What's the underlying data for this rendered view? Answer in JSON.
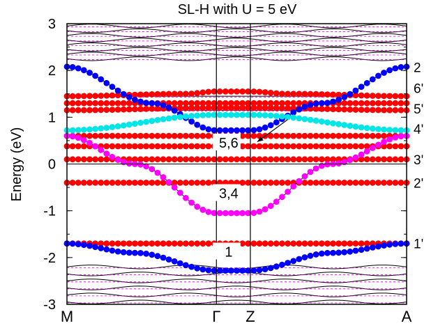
{
  "chart_data": {
    "type": "scatter",
    "title": "SL-H with U = 5 eV",
    "ylabel": "Energy (eV)",
    "xlabel": "",
    "ylim": [
      -3,
      3
    ],
    "yticks": [
      3,
      2,
      1,
      0,
      -1,
      -2,
      -3
    ],
    "ytick_labels": [
      "3",
      "2",
      "1",
      "0",
      "-1",
      "-2",
      "-3"
    ],
    "x_points": {
      "M": 0.0,
      "Gamma": 0.44,
      "Z": 0.54,
      "A": 1.0
    },
    "x_tick_labels": [
      "M",
      "Γ",
      "Z",
      "A"
    ],
    "grid": false,
    "colors": {
      "bands": "#000000",
      "dashed": "#cc00cc",
      "red": "#ff0000",
      "cyan": "#00e5e5",
      "magenta": "#ff00ff",
      "blue": "#0000ff"
    },
    "right_labels": [
      {
        "label": "2",
        "y": 2.07
      },
      {
        "label": "6'",
        "y": 1.62
      },
      {
        "label": "5'",
        "y": 1.18
      },
      {
        "label": "4'",
        "y": 0.75
      },
      {
        "label": "3'",
        "y": 0.1
      },
      {
        "label": "2'",
        "y": -0.4
      },
      {
        "label": "1'",
        "y": -1.7
      }
    ],
    "annotations": [
      {
        "text": "5,6",
        "x": 0.47,
        "y": 0.38
      },
      {
        "text": "3,4",
        "x": 0.47,
        "y": -0.7
      },
      {
        "text": "1",
        "x": 0.47,
        "y": -1.95
      }
    ],
    "arrow": {
      "from": [
        0.65,
        0.95
      ],
      "to": [
        0.54,
        0.4
      ]
    },
    "series": [
      {
        "name": "2",
        "color": "blue",
        "path": [
          [
            0.0,
            2.08
          ],
          [
            0.25,
            1.3
          ],
          [
            0.44,
            0.72
          ],
          [
            0.54,
            0.72
          ],
          [
            0.75,
            1.3
          ],
          [
            1.0,
            2.08
          ]
        ]
      },
      {
        "name": "6'",
        "color": "red",
        "path": [
          [
            0.0,
            1.45
          ],
          [
            0.35,
            1.5
          ],
          [
            0.44,
            1.55
          ],
          [
            0.54,
            1.55
          ],
          [
            0.65,
            1.5
          ],
          [
            1.0,
            1.45
          ]
        ]
      },
      {
        "name": "5'",
        "color": "red",
        "path": [
          [
            0.0,
            1.15
          ],
          [
            0.44,
            1.2
          ],
          [
            0.54,
            1.2
          ],
          [
            1.0,
            1.15
          ]
        ]
      },
      {
        "name": "5'b",
        "color": "red",
        "path": [
          [
            0.0,
            1.3
          ],
          [
            0.44,
            1.3
          ],
          [
            0.54,
            1.3
          ],
          [
            1.0,
            1.3
          ]
        ]
      },
      {
        "name": "5,6",
        "color": "cyan",
        "path": [
          [
            0.0,
            0.72
          ],
          [
            0.44,
            1.05
          ],
          [
            0.54,
            1.05
          ],
          [
            1.0,
            0.72
          ]
        ]
      },
      {
        "name": "4'",
        "color": "red",
        "path": [
          [
            0.0,
            0.6
          ],
          [
            0.44,
            0.6
          ],
          [
            0.54,
            0.6
          ],
          [
            1.0,
            0.6
          ]
        ]
      },
      {
        "name": "3'",
        "color": "red",
        "path": [
          [
            0.0,
            0.1
          ],
          [
            0.44,
            0.1
          ],
          [
            0.54,
            0.1
          ],
          [
            1.0,
            0.1
          ]
        ]
      },
      {
        "name": "3'b",
        "color": "red",
        "path": [
          [
            0.0,
            0.38
          ],
          [
            0.44,
            0.38
          ],
          [
            0.54,
            0.38
          ],
          [
            1.0,
            0.38
          ]
        ]
      },
      {
        "name": "2'",
        "color": "red",
        "path": [
          [
            0.0,
            -0.4
          ],
          [
            0.44,
            -0.4
          ],
          [
            0.54,
            -0.4
          ],
          [
            1.0,
            -0.4
          ]
        ]
      },
      {
        "name": "3,4",
        "color": "magenta",
        "path": [
          [
            0.0,
            0.6
          ],
          [
            0.2,
            0.0
          ],
          [
            0.44,
            -1.05
          ],
          [
            0.54,
            -1.05
          ],
          [
            0.78,
            0.0
          ],
          [
            1.0,
            0.6
          ]
        ]
      },
      {
        "name": "1'",
        "color": "red",
        "path": [
          [
            0.0,
            -1.7
          ],
          [
            0.44,
            -1.7
          ],
          [
            0.54,
            -1.7
          ],
          [
            1.0,
            -1.7
          ]
        ]
      },
      {
        "name": "1",
        "color": "blue",
        "path": [
          [
            0.0,
            -1.7
          ],
          [
            0.2,
            -1.9
          ],
          [
            0.44,
            -2.28
          ],
          [
            0.54,
            -2.28
          ],
          [
            0.78,
            -1.9
          ],
          [
            1.0,
            -1.7
          ]
        ]
      }
    ],
    "black_bands": [
      [
        [
          0.0,
          2.95
        ],
        [
          1.0,
          2.95
        ]
      ],
      [
        [
          0.0,
          2.85
        ],
        [
          1.0,
          2.85
        ]
      ],
      [
        [
          0.0,
          2.75
        ],
        [
          1.0,
          2.75
        ]
      ],
      [
        [
          0.0,
          2.65
        ],
        [
          1.0,
          2.65
        ]
      ],
      [
        [
          0.0,
          2.55
        ],
        [
          1.0,
          2.55
        ]
      ],
      [
        [
          0.0,
          2.45
        ],
        [
          1.0,
          2.45
        ]
      ],
      [
        [
          0.0,
          2.35
        ],
        [
          1.0,
          2.35
        ]
      ],
      [
        [
          0.0,
          2.25
        ],
        [
          1.0,
          2.25
        ]
      ],
      [
        [
          0.0,
          1.45
        ],
        [
          1.0,
          1.45
        ]
      ],
      [
        [
          0.0,
          1.15
        ],
        [
          1.0,
          1.15
        ]
      ],
      [
        [
          0.0,
          0.6
        ],
        [
          1.0,
          0.6
        ]
      ],
      [
        [
          0.0,
          0.1
        ],
        [
          1.0,
          0.1
        ]
      ],
      [
        [
          0.0,
          -0.4
        ],
        [
          1.0,
          -0.4
        ]
      ],
      [
        [
          0.0,
          -1.7
        ],
        [
          1.0,
          -1.7
        ]
      ],
      [
        [
          0.0,
          -2.2
        ],
        [
          1.0,
          -2.2
        ]
      ],
      [
        [
          0.0,
          -2.35
        ],
        [
          1.0,
          -2.35
        ]
      ],
      [
        [
          0.0,
          -2.5
        ],
        [
          1.0,
          -2.5
        ]
      ],
      [
        [
          0.0,
          -2.65
        ],
        [
          1.0,
          -2.65
        ]
      ],
      [
        [
          0.0,
          -2.8
        ],
        [
          1.0,
          -2.8
        ]
      ],
      [
        [
          0.0,
          -2.95
        ],
        [
          1.0,
          -2.95
        ]
      ]
    ]
  }
}
